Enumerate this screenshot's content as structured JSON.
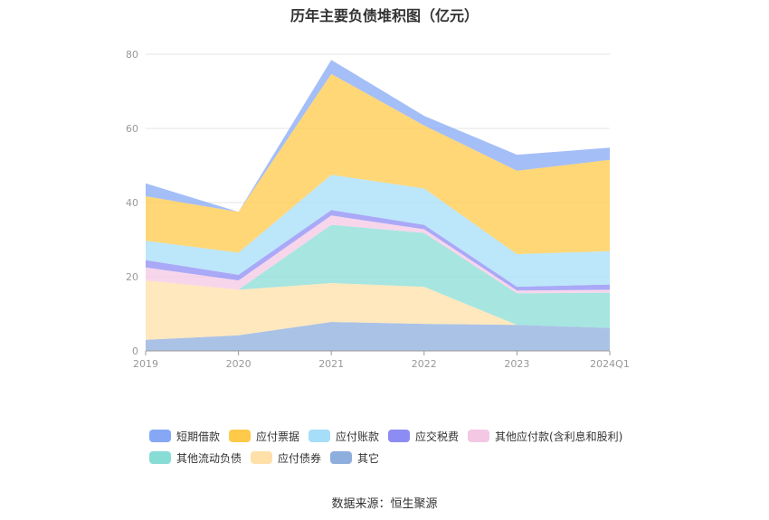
{
  "source_text": "数据来源：恒生聚源",
  "chart_data": {
    "type": "area",
    "stacked": true,
    "title": "历年主要负债堆积图（亿元）",
    "xlabel": "",
    "ylabel": "",
    "categories": [
      "2019",
      "2020",
      "2021",
      "2022",
      "2023",
      "2024Q1"
    ],
    "ylim": [
      0,
      80
    ],
    "yticks": [
      0,
      20,
      40,
      60,
      80
    ],
    "grid": true,
    "legend_position": "bottom",
    "series": [
      {
        "name": "其它",
        "color": "#8eaede",
        "values": [
          3.0,
          4.2,
          7.8,
          7.3,
          7.0,
          6.2
        ]
      },
      {
        "name": "应付债券",
        "color": "#ffe0a8",
        "values": [
          16.0,
          12.3,
          10.5,
          10.0,
          0.0,
          0.0
        ]
      },
      {
        "name": "其他流动负债",
        "color": "#88dcd6",
        "values": [
          0.0,
          0.0,
          15.7,
          14.5,
          8.5,
          9.5
        ]
      },
      {
        "name": "其他应付款(含利息和股利)",
        "color": "#f4c8e4",
        "values": [
          3.5,
          2.5,
          2.5,
          1.0,
          0.8,
          0.8
        ]
      },
      {
        "name": "应交税费",
        "color": "#8c8cf4",
        "values": [
          2.0,
          1.5,
          1.5,
          1.2,
          1.0,
          1.4
        ]
      },
      {
        "name": "应付账款",
        "color": "#a6ddf8",
        "values": [
          5.2,
          6.0,
          9.5,
          9.8,
          8.8,
          9.0
        ]
      },
      {
        "name": "应付票据",
        "color": "#ffc94a",
        "values": [
          12.0,
          11.0,
          27.2,
          17.0,
          22.5,
          24.6
        ]
      },
      {
        "name": "短期借款",
        "color": "#86a8f4",
        "values": [
          3.5,
          0.0,
          3.8,
          2.6,
          4.3,
          3.3
        ]
      }
    ],
    "legend_order": [
      "短期借款",
      "应付票据",
      "应付账款",
      "应交税费",
      "其他应付款(含利息和股利)",
      "其他流动负债",
      "应付债券",
      "其它"
    ]
  }
}
